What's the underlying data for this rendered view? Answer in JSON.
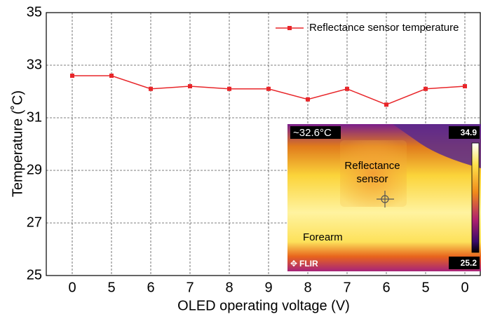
{
  "chart_data": {
    "type": "line",
    "x_label": "OLED operating voltage (V)",
    "y_label": "Temperature (˚C)",
    "categories": [
      "0",
      "5",
      "6",
      "7",
      "8",
      "9",
      "8",
      "7",
      "6",
      "5",
      "0"
    ],
    "series": [
      {
        "name": "Reflectance sensor temperature",
        "color": "#e8262a",
        "values": [
          32.6,
          32.6,
          32.1,
          32.2,
          32.1,
          32.1,
          31.7,
          32.1,
          31.5,
          32.1,
          32.2
        ]
      }
    ],
    "ylim": [
      25,
      35
    ],
    "yticks": [
      25,
      27,
      29,
      31,
      33,
      35
    ],
    "grid": true,
    "legend": "upper right"
  },
  "inset": {
    "reading": "~32.6°C",
    "scale_max": "34.9",
    "scale_min": "25.2",
    "sensor_label": [
      "Reflectance",
      "sensor"
    ],
    "arm_label": "Forearm",
    "brand": "FLIR"
  }
}
